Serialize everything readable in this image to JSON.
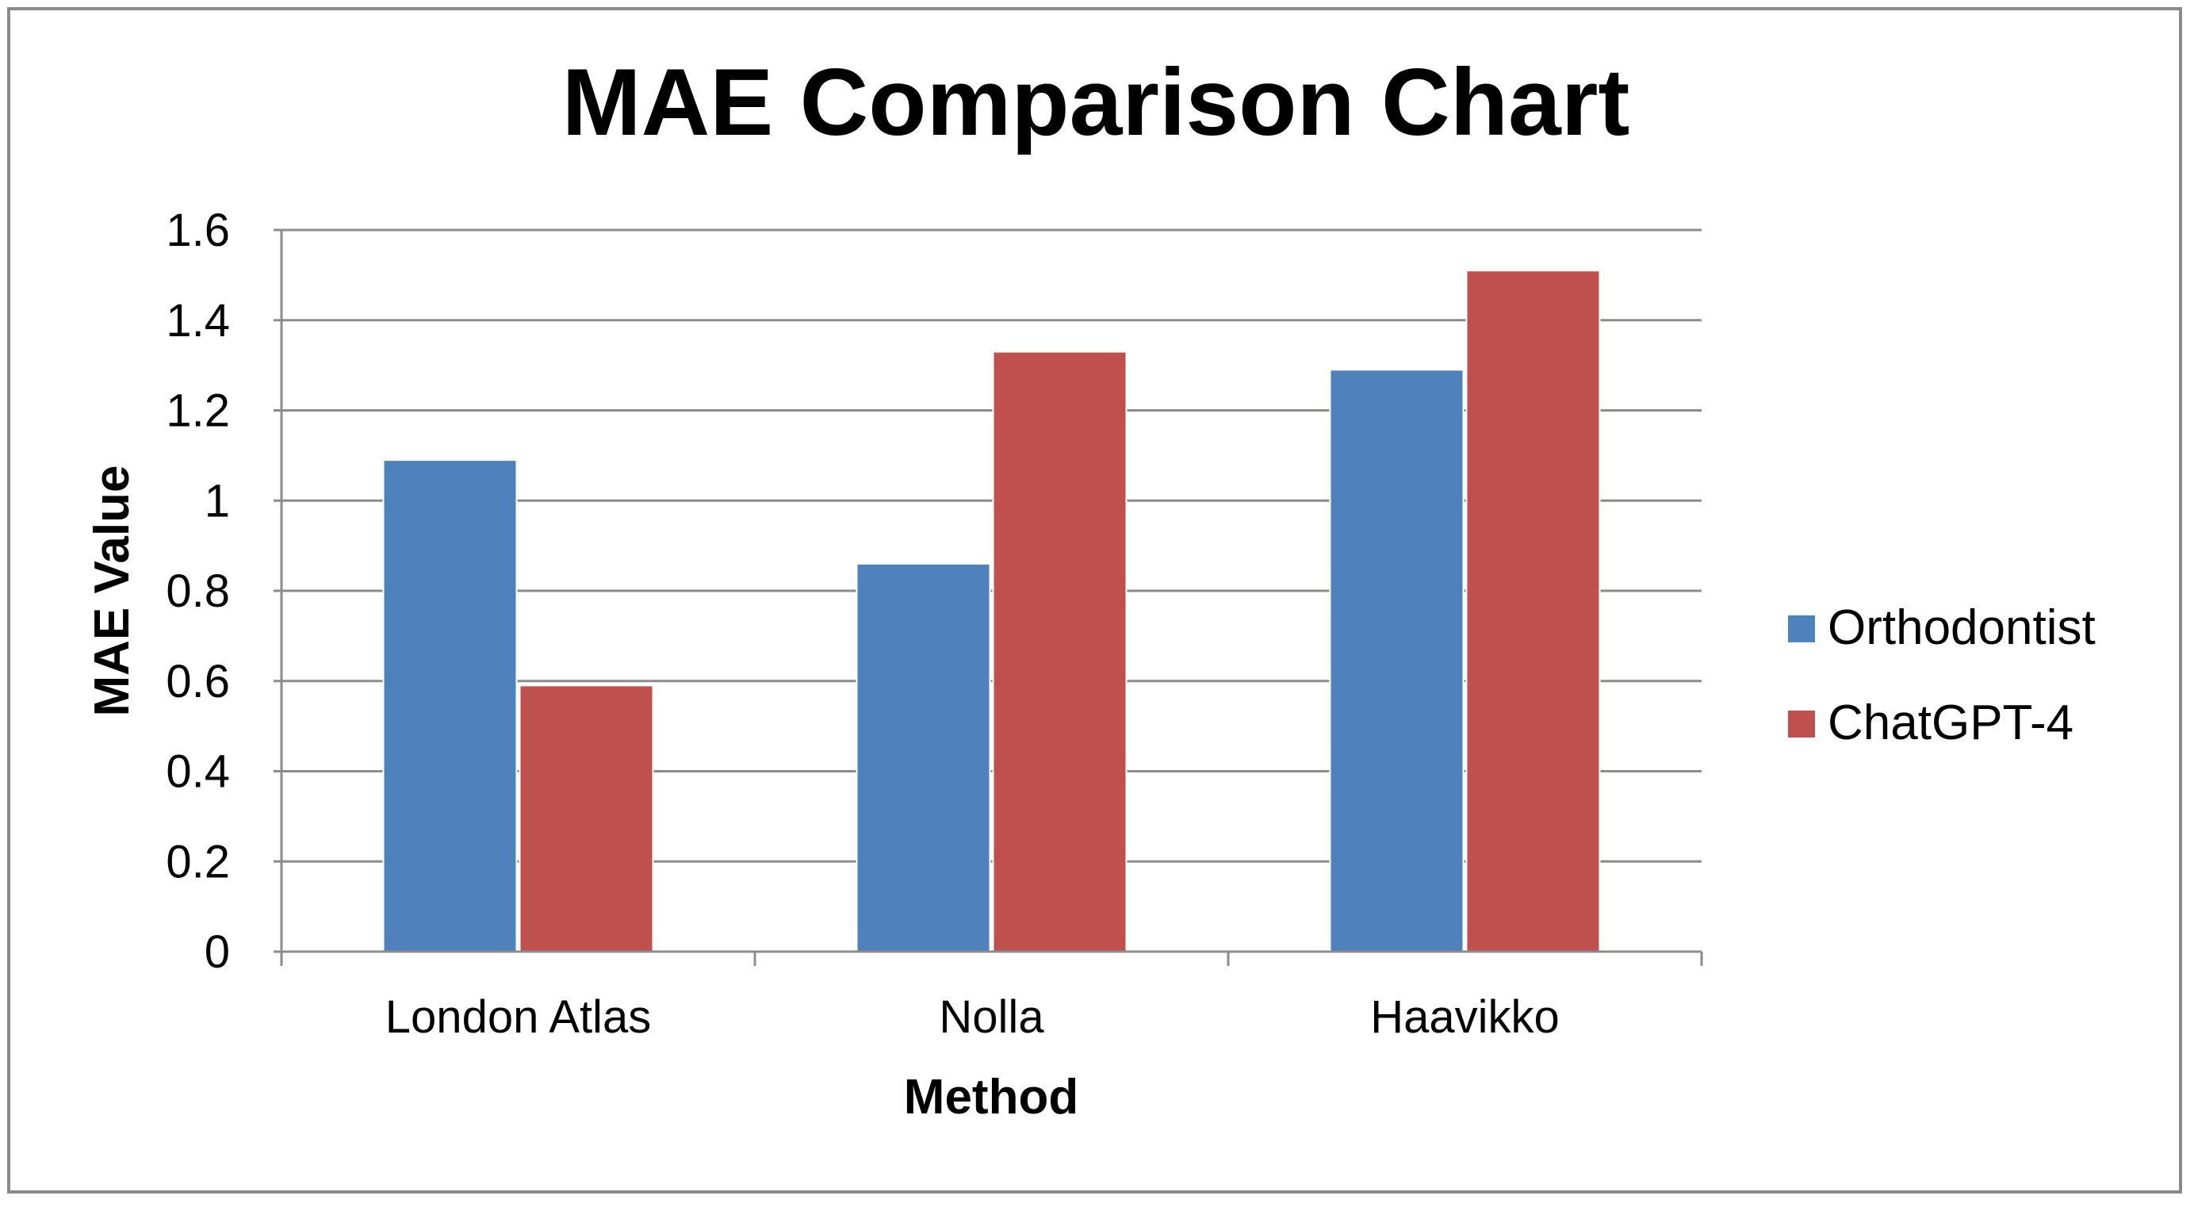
{
  "chart_data": {
    "type": "bar",
    "title": "MAE Comparison Chart",
    "xlabel": "Method",
    "ylabel": "MAE Value",
    "categories": [
      "London Atlas",
      "Nolla",
      "Haavikko"
    ],
    "series": [
      {
        "name": "Orthodontist",
        "values": [
          1.09,
          0.86,
          1.29
        ],
        "color": "#4f81bd"
      },
      {
        "name": "ChatGPT-4",
        "values": [
          0.59,
          1.33,
          1.51
        ],
        "color": "#c0504d"
      }
    ],
    "ylim": [
      0,
      1.6
    ],
    "yticks": [
      "0",
      "0.2",
      "0.4",
      "0.6",
      "0.8",
      "1",
      "1.2",
      "1.4",
      "1.6"
    ],
    "ytick_values": [
      0,
      0.2,
      0.4,
      0.6,
      0.8,
      1.0,
      1.2,
      1.4,
      1.6
    ],
    "grid": true,
    "legend": "right",
    "gridline_color": "#8c8c8c"
  }
}
